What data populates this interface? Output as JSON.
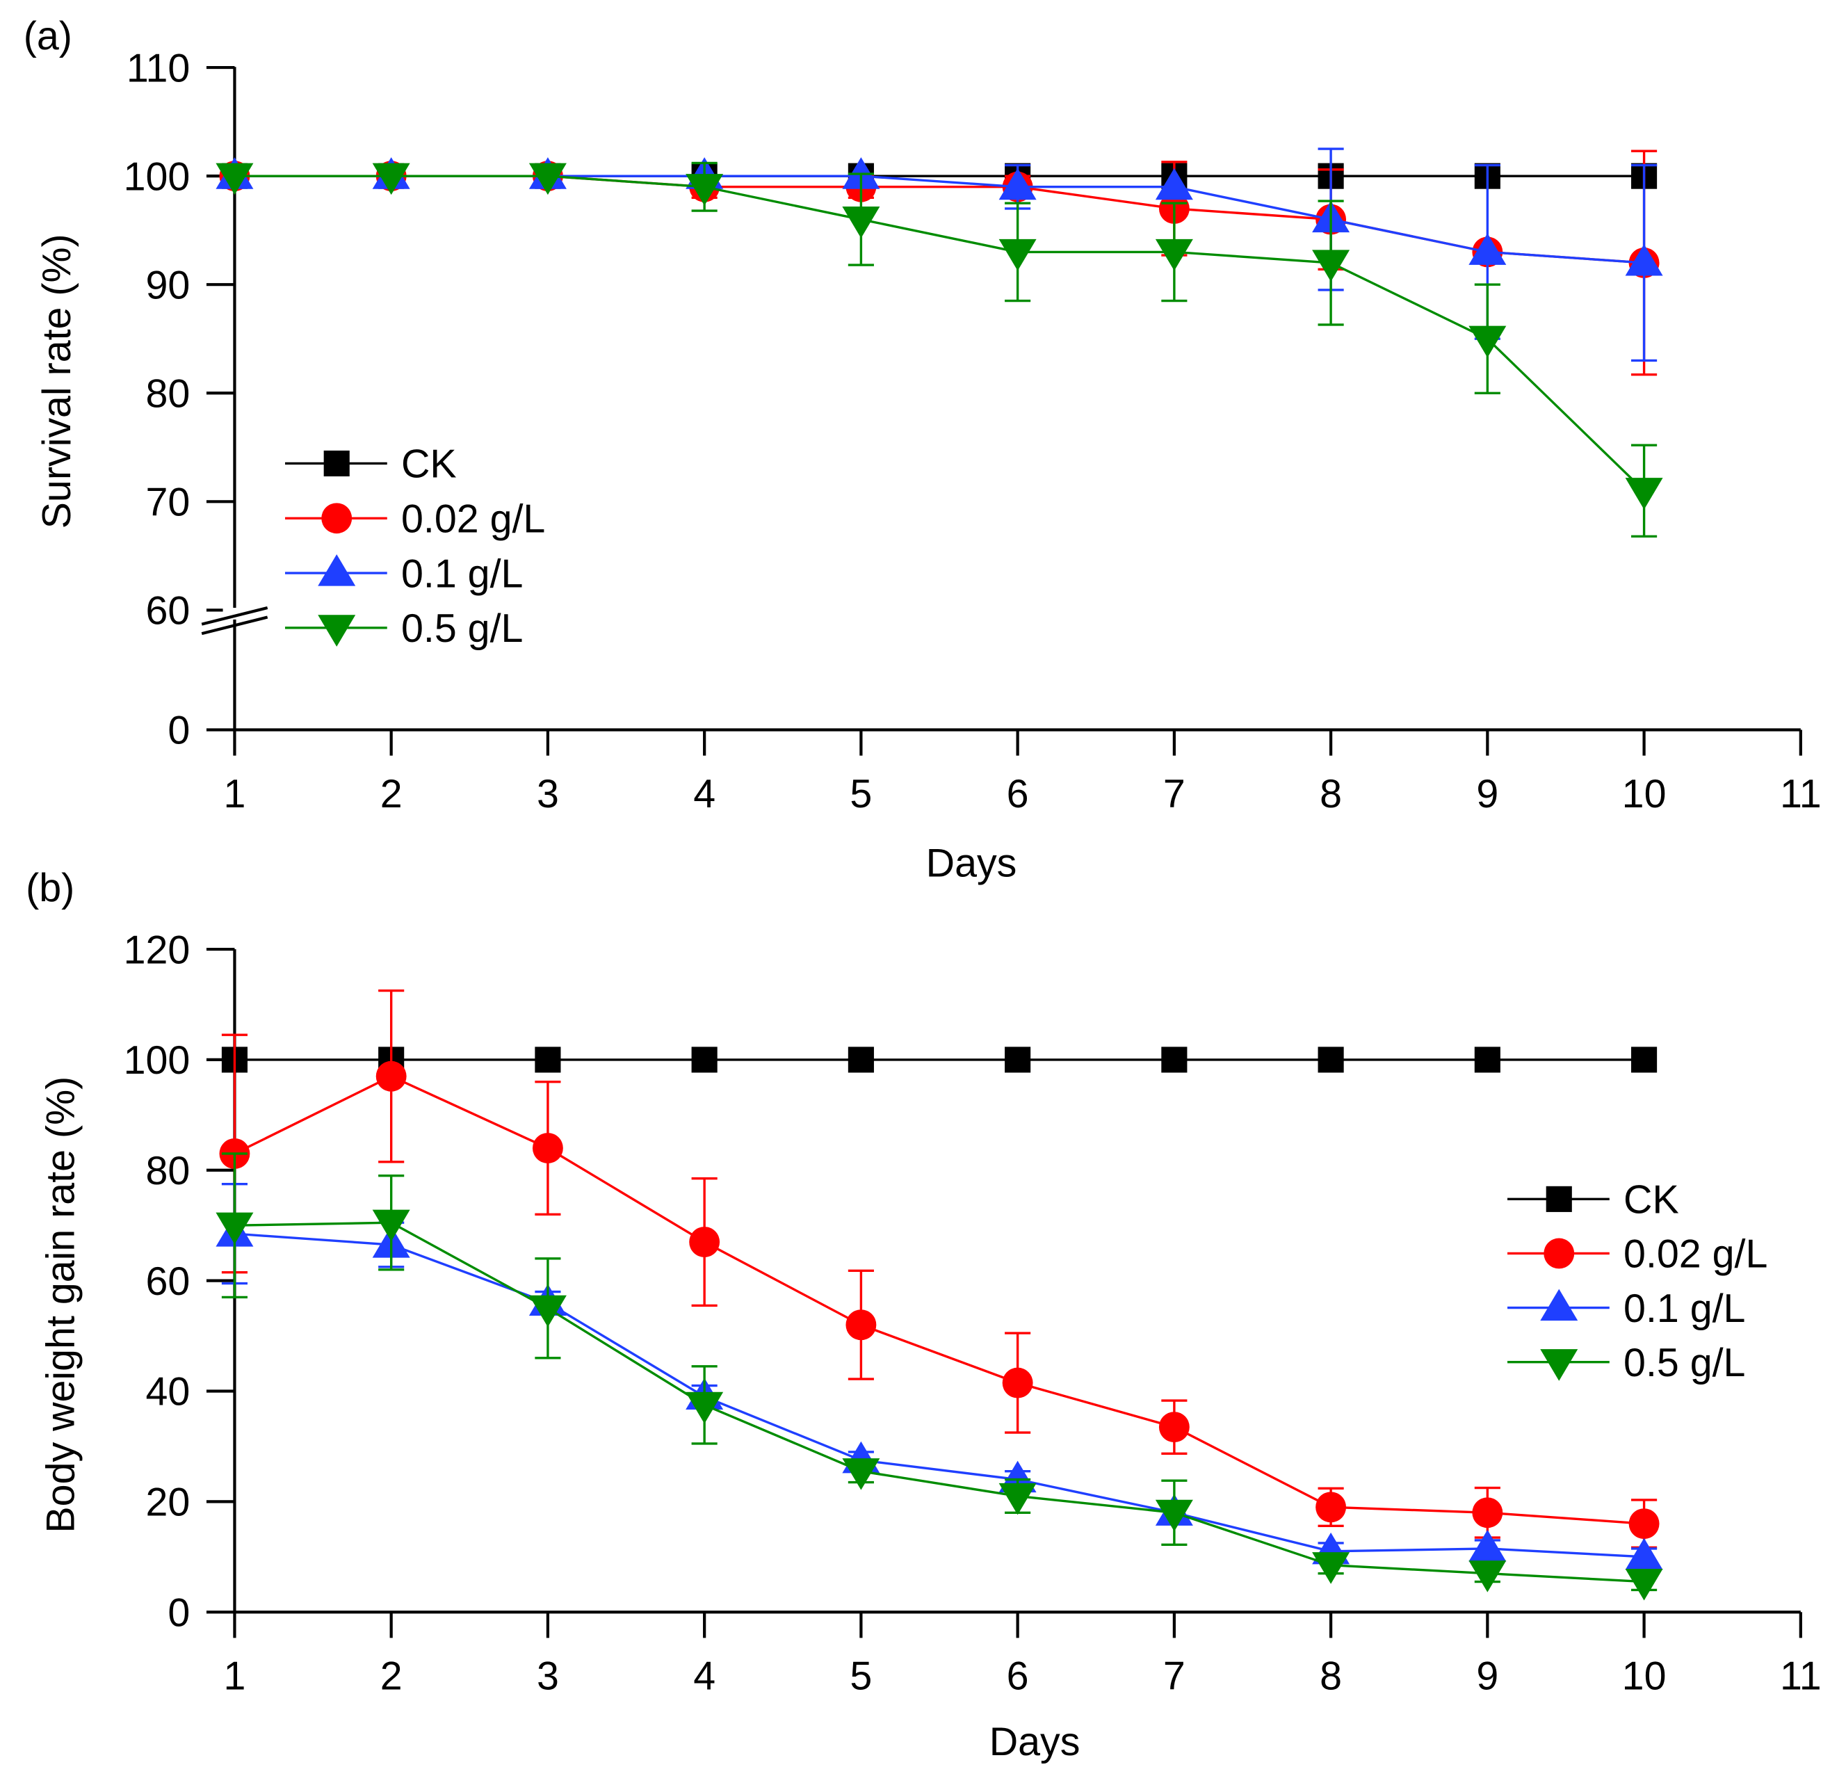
{
  "chart_data": [
    {
      "type": "line",
      "panel_label": "(a)",
      "xlabel": "Days",
      "ylabel": "Survival rate (%)",
      "x_ticks": [
        "1",
        "2",
        "3",
        "4",
        "5",
        "6",
        "7",
        "8",
        "9",
        "10",
        "11"
      ],
      "y_ticks": [
        "0",
        "60",
        "70",
        "80",
        "90",
        "100",
        "110"
      ],
      "xlim": [
        1,
        11
      ],
      "ylim": [
        0,
        110
      ],
      "y_axis_break": [
        0,
        60
      ],
      "legend_position": "center-left",
      "x": [
        1,
        2,
        3,
        4,
        5,
        6,
        7,
        8,
        9,
        10
      ],
      "series": [
        {
          "name": "CK",
          "marker": "square",
          "color": "#000000",
          "values": [
            100,
            100,
            100,
            100,
            100,
            100,
            100,
            100,
            100,
            100
          ],
          "errors": [
            0,
            0,
            0,
            0,
            0,
            0,
            0,
            0,
            0,
            0
          ]
        },
        {
          "name": "0.02 g/L",
          "marker": "circle",
          "color": "#ff0000",
          "values": [
            100,
            100,
            100,
            99,
            99,
            99,
            97,
            96,
            93,
            92
          ],
          "errors": [
            0,
            0,
            0,
            1,
            1,
            1,
            4.3,
            4.6,
            0,
            10.3
          ]
        },
        {
          "name": "0.1 g/L",
          "marker": "triangle-up",
          "color": "#1f3fff",
          "values": [
            100,
            100,
            100,
            100,
            100,
            99,
            99,
            96,
            93,
            92
          ],
          "errors": [
            0,
            0,
            0,
            0,
            0,
            2,
            0,
            6.5,
            8,
            9
          ]
        },
        {
          "name": "0.5 g/L",
          "marker": "triangle-down",
          "color": "#008c00",
          "values": [
            100,
            100,
            100,
            99,
            96,
            93,
            93,
            92,
            85,
            71
          ],
          "errors": [
            0,
            0,
            0,
            2.2,
            4.2,
            4.5,
            4.5,
            5.7,
            5,
            4.2
          ]
        }
      ]
    },
    {
      "type": "line",
      "panel_label": "(b)",
      "xlabel": "Days",
      "ylabel": "Body weight gain rate (%)",
      "x_ticks": [
        "1",
        "2",
        "3",
        "4",
        "5",
        "6",
        "7",
        "8",
        "9",
        "10",
        "11"
      ],
      "y_ticks": [
        "0",
        "20",
        "40",
        "60",
        "80",
        "100",
        "120"
      ],
      "xlim": [
        1,
        11
      ],
      "ylim": [
        0,
        120
      ],
      "legend_position": "center-right",
      "x": [
        1,
        2,
        3,
        4,
        5,
        6,
        7,
        8,
        9,
        10
      ],
      "series": [
        {
          "name": "CK",
          "marker": "square",
          "color": "#000000",
          "values": [
            100,
            100,
            100,
            100,
            100,
            100,
            100,
            100,
            100,
            100
          ],
          "errors": [
            0,
            0,
            0,
            0,
            0,
            0,
            0,
            0,
            0,
            0
          ]
        },
        {
          "name": "0.02 g/L",
          "marker": "circle",
          "color": "#ff0000",
          "values": [
            83,
            97,
            84,
            67,
            52,
            41.5,
            33.5,
            19,
            18,
            16
          ],
          "errors": [
            21.5,
            15.5,
            12,
            11.5,
            9.8,
            9,
            4.8,
            3.4,
            4.5,
            4.3
          ]
        },
        {
          "name": "0.1 g/L",
          "marker": "triangle-up",
          "color": "#1f3fff",
          "values": [
            68.5,
            66.5,
            56,
            39,
            27.5,
            24,
            18,
            11,
            11.5,
            10
          ],
          "errors": [
            9,
            4,
            2,
            2,
            1.5,
            1.5,
            1.5,
            1.5,
            1.5,
            1.5
          ]
        },
        {
          "name": "0.5 g/L",
          "marker": "triangle-down",
          "color": "#008c00",
          "values": [
            70,
            70.5,
            55,
            37.5,
            25.5,
            21,
            18,
            8.5,
            7,
            5.5
          ],
          "errors": [
            13,
            8.5,
            9,
            7,
            2,
            3,
            5.8,
            1.5,
            1.5,
            1.5
          ]
        }
      ]
    }
  ]
}
